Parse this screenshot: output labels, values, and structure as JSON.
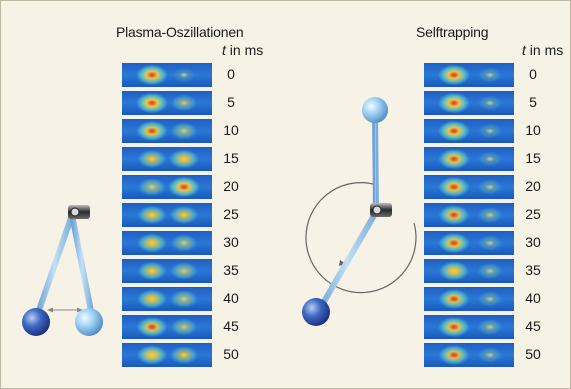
{
  "panels": [
    {
      "title": "Plasma-Oszillationen",
      "time_header": {
        "symbol": "t",
        "unit": "in ms"
      },
      "times": [
        "0",
        "5",
        "10",
        "15",
        "20",
        "25",
        "30",
        "35",
        "40",
        "45",
        "50"
      ],
      "left_blob_intensity": [
        1.0,
        1.0,
        0.95,
        0.7,
        0.6,
        0.75,
        0.8,
        0.75,
        0.8,
        0.9,
        0.85
      ],
      "right_blob_intensity": [
        0.25,
        0.5,
        0.55,
        0.8,
        1.0,
        0.7,
        0.55,
        0.6,
        0.6,
        0.55,
        0.65
      ]
    },
    {
      "title": "Selftrapping",
      "time_header": {
        "symbol": "t",
        "unit": "in ms"
      },
      "times": [
        "0",
        "5",
        "10",
        "15",
        "20",
        "25",
        "30",
        "35",
        "40",
        "45",
        "50"
      ],
      "left_blob_intensity": [
        1.0,
        1.0,
        1.0,
        0.95,
        0.95,
        0.9,
        0.95,
        0.85,
        0.9,
        0.95,
        0.9
      ],
      "right_blob_intensity": [
        0.3,
        0.3,
        0.28,
        0.3,
        0.35,
        0.4,
        0.35,
        0.4,
        0.35,
        0.4,
        0.35
      ]
    }
  ],
  "colors": {
    "background": "#f6f2e6",
    "strip_blue": "#1c63c8",
    "pendulum_rod": "#9cc4e6",
    "ball_dark": "#2a4fae",
    "ball_light": "#8ec4ea"
  },
  "illustrations": [
    "coupled-pendulum-icon",
    "rotating-pendulum-icon"
  ]
}
